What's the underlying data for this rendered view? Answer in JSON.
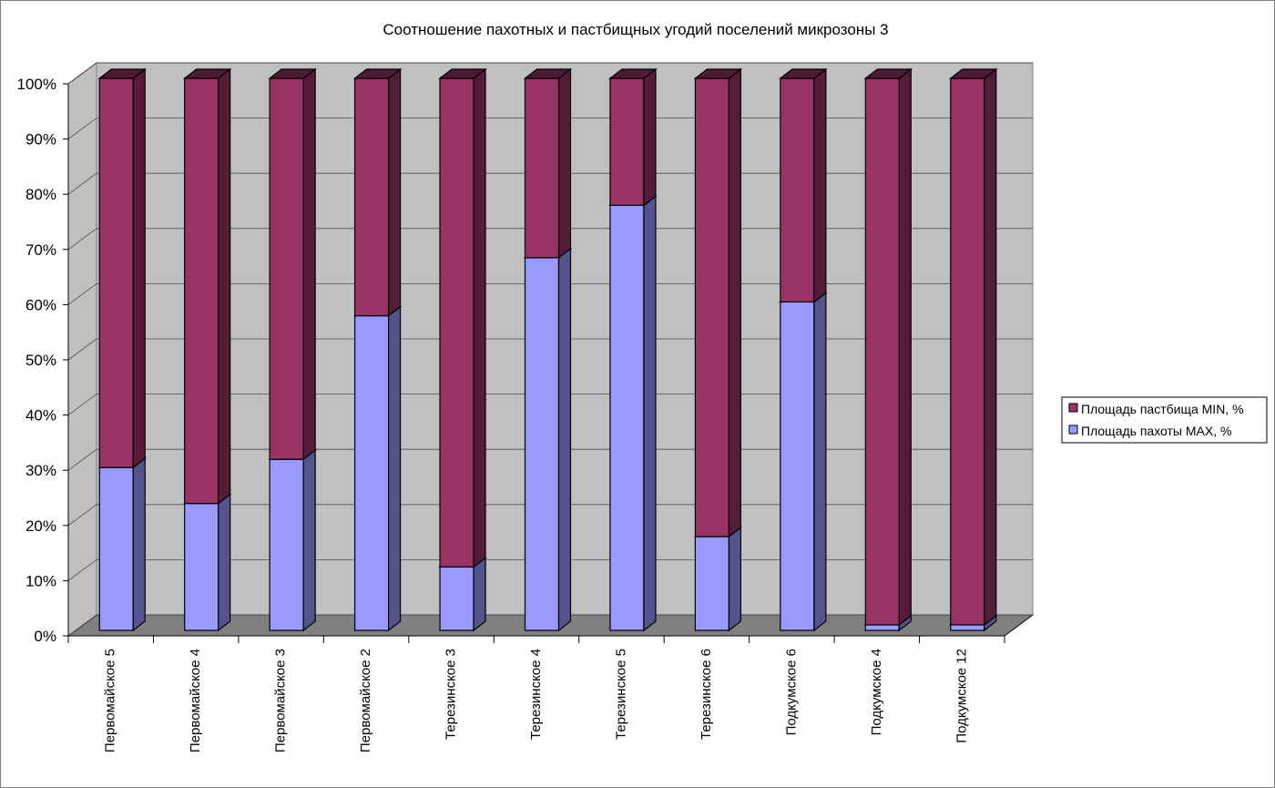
{
  "chart_data": {
    "type": "bar",
    "stacked": "percent",
    "title": "Соотношение пахотных и пастбищных угодий поселений микрозоны 3",
    "categories": [
      "Первомайское 5",
      "Первомайское 4",
      "Первомайское 3",
      "Первомайское 2",
      "Терезинское 3",
      "Терезинское 4",
      "Терезинское 5",
      "Терезинское 6",
      "Подкумское 6",
      "Подкумское 4",
      "Подкумское 12"
    ],
    "series": [
      {
        "name": "Площадь пахоты MAX, %",
        "color": "#9999ff",
        "values": [
          29.5,
          23,
          31,
          57,
          11.5,
          67.5,
          77,
          17,
          59.5,
          1,
          1
        ]
      },
      {
        "name": "Площадь пастбища MIN, %",
        "color": "#993366",
        "values": [
          70.5,
          77,
          69,
          43,
          88.5,
          32.5,
          23,
          83,
          40.5,
          99,
          99
        ]
      }
    ],
    "yticks": [
      "0%",
      "10%",
      "20%",
      "30%",
      "40%",
      "50%",
      "60%",
      "70%",
      "80%",
      "90%",
      "100%"
    ],
    "ylim": [
      0,
      100
    ],
    "grid": true,
    "legend_position": "right"
  }
}
